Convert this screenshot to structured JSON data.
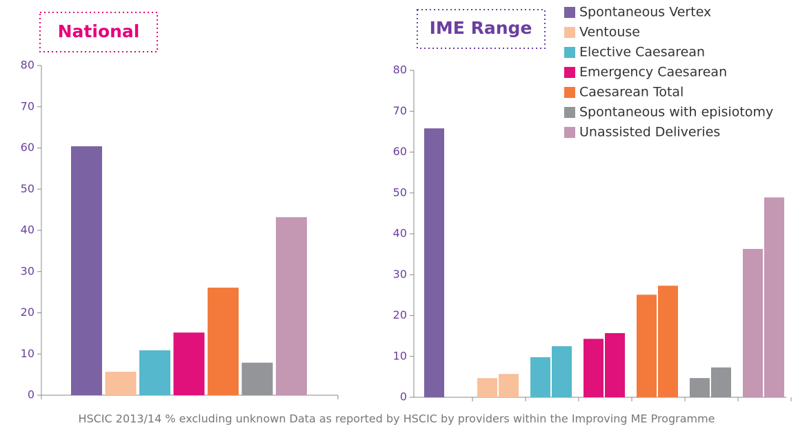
{
  "chart_data": [
    {
      "type": "bar",
      "title": "National",
      "categories": [
        "Spontaneous Vertex",
        "Ventouse",
        "Elective Caesarean",
        "Emergency Caesarean",
        "Caesarean Total",
        "Spontaneous with episiotomy",
        "Unassisted Deliveries"
      ],
      "colors": [
        "#7b62a3",
        "#f9c09c",
        "#56b8cd",
        "#e0117a",
        "#f47a3c",
        "#939598",
        "#c497b3"
      ],
      "values": [
        60.4,
        5.7,
        10.9,
        15.2,
        26.1,
        7.9,
        43.2
      ],
      "ylim": [
        0,
        80
      ],
      "yticks": [
        0,
        10,
        20,
        30,
        40,
        50,
        60,
        70,
        80
      ]
    },
    {
      "type": "range-bar",
      "title": "IME Range",
      "values": [
        [
          65.8,
          null
        ],
        [
          4.7,
          5.7
        ],
        [
          9.8,
          12.5
        ],
        [
          14.3,
          15.7
        ],
        [
          25.1,
          27.3
        ],
        [
          4.7,
          7.3
        ],
        [
          36.3,
          48.9
        ]
      ],
      "ylim": [
        0,
        80
      ],
      "yticks": [
        0,
        10,
        20,
        30,
        40,
        50,
        60,
        70,
        80
      ]
    }
  ],
  "footer": "HSCIC 2013/14 % excluding unknown Data as reported by HSCIC by providers within the Improving ME Programme"
}
